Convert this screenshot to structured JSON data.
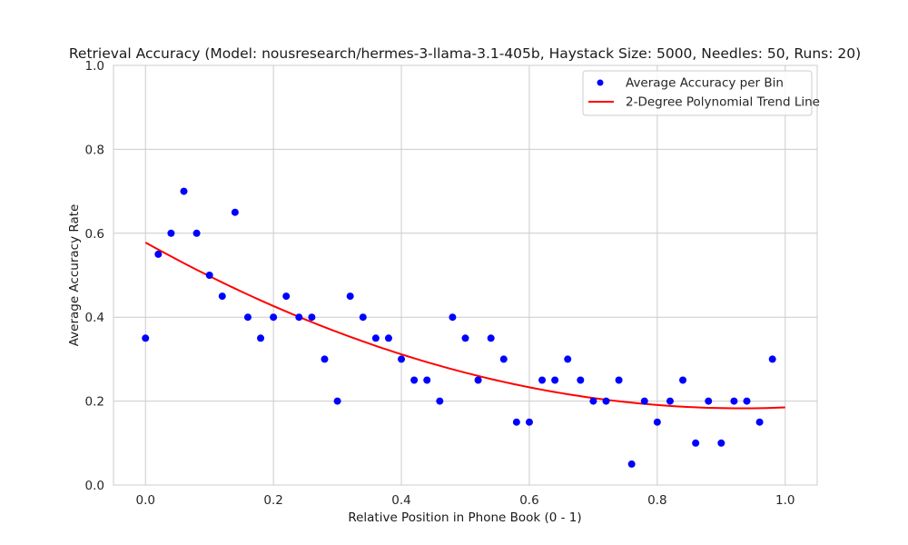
{
  "chart_data": {
    "type": "scatter",
    "title": "Retrieval Accuracy (Model: nousresearch/hermes-3-llama-3.1-405b, Haystack Size: 5000, Needles: 50, Runs: 20)",
    "xlabel": "Relative Position in Phone Book (0 - 1)",
    "ylabel": "Average Accuracy Rate",
    "xlim": [
      -0.05,
      1.05
    ],
    "ylim": [
      0.0,
      1.0
    ],
    "x_ticks": [
      0.0,
      0.2,
      0.4,
      0.6,
      0.8,
      1.0
    ],
    "x_tick_labels": [
      "0.0",
      "0.2",
      "0.4",
      "0.6",
      "0.8",
      "1.0"
    ],
    "y_ticks": [
      0.0,
      0.2,
      0.4,
      0.6,
      0.8,
      1.0
    ],
    "y_tick_labels": [
      "0.0",
      "0.2",
      "0.4",
      "0.6",
      "0.8",
      "1.0"
    ],
    "grid": true,
    "legend_position": "top-right",
    "colors": {
      "points": "#0000ff",
      "trend": "#ff0000",
      "grid": "#cccccc",
      "frame": "#cccccc"
    },
    "series": [
      {
        "name": "Average Accuracy per Bin",
        "kind": "scatter",
        "x": [
          0.0,
          0.02,
          0.04,
          0.06,
          0.08,
          0.1,
          0.12,
          0.14,
          0.16,
          0.18,
          0.2,
          0.22,
          0.24,
          0.26,
          0.28,
          0.3,
          0.32,
          0.34,
          0.36,
          0.38,
          0.4,
          0.42,
          0.44,
          0.46,
          0.48,
          0.5,
          0.52,
          0.54,
          0.56,
          0.58,
          0.6,
          0.62,
          0.64,
          0.66,
          0.68,
          0.7,
          0.72,
          0.74,
          0.76,
          0.78,
          0.8,
          0.82,
          0.84,
          0.86,
          0.88,
          0.9,
          0.92,
          0.94,
          0.96,
          0.98
        ],
        "y": [
          0.35,
          0.55,
          0.6,
          0.7,
          0.6,
          0.5,
          0.45,
          0.65,
          0.4,
          0.35,
          0.4,
          0.45,
          0.4,
          0.4,
          0.3,
          0.2,
          0.45,
          0.4,
          0.35,
          0.35,
          0.3,
          0.25,
          0.25,
          0.2,
          0.4,
          0.35,
          0.25,
          0.35,
          0.3,
          0.15,
          0.15,
          0.25,
          0.25,
          0.3,
          0.25,
          0.2,
          0.2,
          0.25,
          0.05,
          0.2,
          0.15,
          0.2,
          0.25,
          0.1,
          0.2,
          0.1,
          0.2,
          0.2,
          0.15,
          0.3
        ]
      },
      {
        "name": "2-Degree Polynomial Trend Line",
        "kind": "line",
        "polynomial_coefficients": [
          0.578,
          -0.848,
          0.455
        ],
        "x_range": [
          0.0,
          1.0
        ]
      }
    ]
  }
}
